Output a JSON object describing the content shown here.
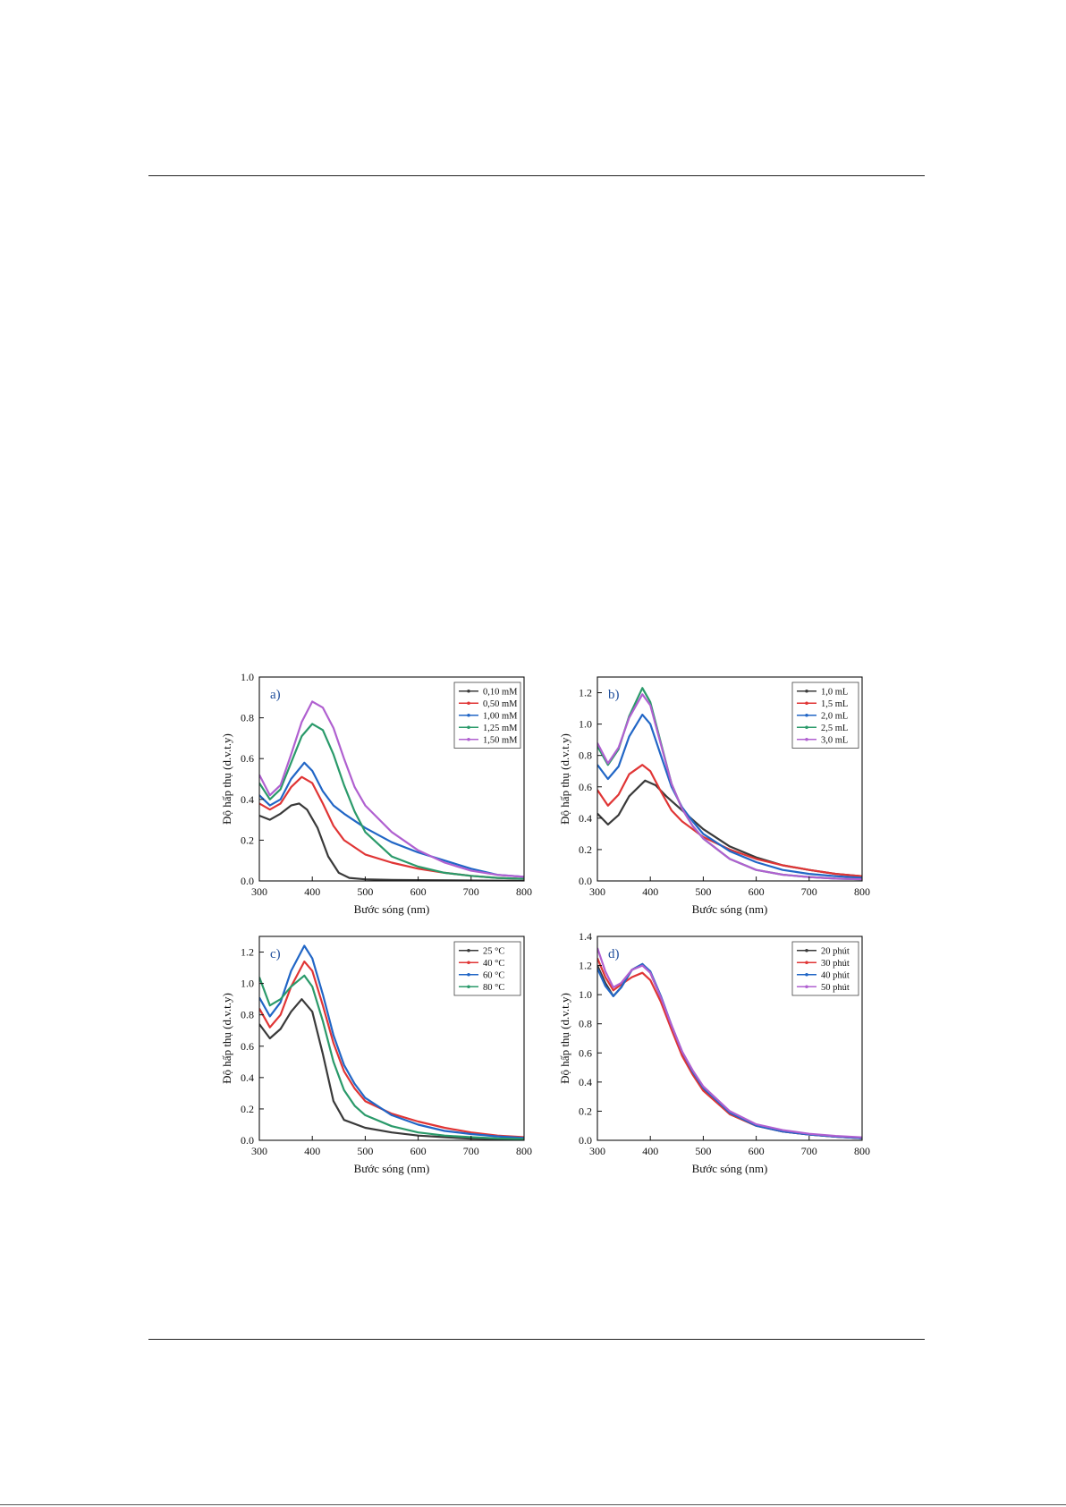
{
  "chart_data": [
    {
      "id": "a",
      "type": "line",
      "panel_label": "a)",
      "xlabel": "Bước sóng (nm)",
      "ylabel": "Độ hấp thụ (d.v.t.y)",
      "xlim": [
        300,
        800
      ],
      "ylim": [
        0,
        1.0
      ],
      "xticks": [
        300,
        400,
        500,
        600,
        700,
        800
      ],
      "yticks": [
        0.0,
        0.2,
        0.4,
        0.6,
        0.8,
        1.0
      ],
      "ytick_labels": [
        "0.0",
        "0.2",
        "0.4",
        "0.6",
        "0.8",
        "1.0"
      ],
      "legend_position": "top-right",
      "grid": false,
      "series": [
        {
          "name": "0,10 mM",
          "color": "#3a3a3a",
          "x": [
            300,
            320,
            340,
            360,
            375,
            390,
            410,
            430,
            450,
            470,
            500,
            550,
            600,
            700,
            800
          ],
          "y": [
            0.32,
            0.3,
            0.33,
            0.37,
            0.38,
            0.35,
            0.26,
            0.12,
            0.04,
            0.015,
            0.008,
            0.005,
            0.004,
            0.002,
            0.0
          ]
        },
        {
          "name": "0,50 mM",
          "color": "#e03535",
          "x": [
            300,
            320,
            340,
            360,
            380,
            400,
            420,
            440,
            460,
            500,
            550,
            600,
            650,
            700,
            750,
            800
          ],
          "y": [
            0.38,
            0.35,
            0.38,
            0.46,
            0.51,
            0.48,
            0.38,
            0.27,
            0.2,
            0.13,
            0.09,
            0.06,
            0.04,
            0.025,
            0.015,
            0.01
          ]
        },
        {
          "name": "1,00 mM",
          "color": "#2166c6",
          "x": [
            300,
            320,
            340,
            360,
            385,
            400,
            420,
            440,
            460,
            500,
            550,
            600,
            650,
            700,
            750,
            800
          ],
          "y": [
            0.42,
            0.37,
            0.4,
            0.5,
            0.58,
            0.54,
            0.44,
            0.37,
            0.33,
            0.26,
            0.19,
            0.14,
            0.1,
            0.06,
            0.03,
            0.02
          ]
        },
        {
          "name": "1,25 mM",
          "color": "#2a9a6a",
          "x": [
            300,
            320,
            340,
            360,
            380,
            400,
            420,
            440,
            460,
            480,
            500,
            550,
            600,
            650,
            700,
            750,
            800
          ],
          "y": [
            0.48,
            0.4,
            0.45,
            0.58,
            0.71,
            0.77,
            0.74,
            0.62,
            0.47,
            0.34,
            0.24,
            0.12,
            0.07,
            0.04,
            0.025,
            0.015,
            0.01
          ]
        },
        {
          "name": "1,50 mM",
          "color": "#b060d0",
          "x": [
            300,
            320,
            340,
            360,
            380,
            400,
            420,
            440,
            460,
            480,
            500,
            550,
            600,
            650,
            700,
            750,
            800
          ],
          "y": [
            0.52,
            0.42,
            0.47,
            0.62,
            0.78,
            0.88,
            0.85,
            0.75,
            0.6,
            0.46,
            0.37,
            0.24,
            0.15,
            0.09,
            0.05,
            0.03,
            0.02
          ]
        }
      ]
    },
    {
      "id": "b",
      "type": "line",
      "panel_label": "b)",
      "xlabel": "Bước sóng (nm)",
      "ylabel": "Độ hấp thụ (d.v.t.y)",
      "xlim": [
        300,
        800
      ],
      "ylim": [
        0,
        1.3
      ],
      "xticks": [
        300,
        400,
        500,
        600,
        700,
        800
      ],
      "yticks": [
        0.0,
        0.2,
        0.4,
        0.6,
        0.8,
        1.0,
        1.2
      ],
      "ytick_labels": [
        "0.0",
        "0.2",
        "0.4",
        "0.6",
        "0.8",
        "1.0",
        "1.2"
      ],
      "legend_position": "top-right",
      "grid": false,
      "series": [
        {
          "name": "1,0 mL",
          "color": "#3a3a3a",
          "x": [
            300,
            320,
            340,
            360,
            390,
            410,
            430,
            450,
            470,
            500,
            550,
            600,
            650,
            700,
            750,
            800
          ],
          "y": [
            0.43,
            0.36,
            0.42,
            0.54,
            0.64,
            0.61,
            0.54,
            0.48,
            0.42,
            0.33,
            0.22,
            0.15,
            0.1,
            0.07,
            0.045,
            0.03
          ]
        },
        {
          "name": "1,5 mL",
          "color": "#e03535",
          "x": [
            300,
            320,
            340,
            360,
            385,
            400,
            420,
            440,
            460,
            480,
            500,
            550,
            600,
            650,
            700,
            750,
            800
          ],
          "y": [
            0.58,
            0.48,
            0.55,
            0.68,
            0.74,
            0.7,
            0.57,
            0.45,
            0.38,
            0.33,
            0.28,
            0.2,
            0.14,
            0.1,
            0.07,
            0.045,
            0.03
          ]
        },
        {
          "name": "2,0 mL",
          "color": "#2166c6",
          "x": [
            300,
            320,
            340,
            360,
            385,
            400,
            420,
            440,
            460,
            480,
            500,
            550,
            600,
            650,
            700,
            750,
            800
          ],
          "y": [
            0.74,
            0.65,
            0.73,
            0.92,
            1.06,
            1.0,
            0.8,
            0.6,
            0.47,
            0.38,
            0.3,
            0.19,
            0.12,
            0.07,
            0.045,
            0.03,
            0.02
          ]
        },
        {
          "name": "2,5 mL",
          "color": "#2a9a6a",
          "x": [
            300,
            320,
            340,
            360,
            385,
            400,
            420,
            440,
            460,
            480,
            500,
            550,
            600,
            650,
            700,
            750,
            800
          ],
          "y": [
            0.86,
            0.74,
            0.84,
            1.05,
            1.23,
            1.14,
            0.88,
            0.62,
            0.46,
            0.35,
            0.27,
            0.14,
            0.07,
            0.04,
            0.025,
            0.015,
            0.01
          ]
        },
        {
          "name": "3,0 mL",
          "color": "#b060d0",
          "x": [
            300,
            320,
            340,
            360,
            385,
            400,
            420,
            440,
            460,
            480,
            500,
            550,
            600,
            650,
            700,
            750,
            800
          ],
          "y": [
            0.88,
            0.75,
            0.85,
            1.04,
            1.19,
            1.12,
            0.87,
            0.62,
            0.46,
            0.35,
            0.27,
            0.14,
            0.07,
            0.04,
            0.025,
            0.015,
            0.01
          ]
        }
      ]
    },
    {
      "id": "c",
      "type": "line",
      "panel_label": "c)",
      "xlabel": "Bước sóng (nm)",
      "ylabel": "Độ hấp thụ (d.v.t.y)",
      "xlim": [
        300,
        800
      ],
      "ylim": [
        0,
        1.3
      ],
      "xticks": [
        300,
        400,
        500,
        600,
        700,
        800
      ],
      "yticks": [
        0.0,
        0.2,
        0.4,
        0.6,
        0.8,
        1.0,
        1.2
      ],
      "ytick_labels": [
        "0.0",
        "0.2",
        "0.4",
        "0.6",
        "0.8",
        "1.0",
        "1.2"
      ],
      "legend_position": "top-right",
      "grid": false,
      "series": [
        {
          "name": "25 °C",
          "color": "#3a3a3a",
          "x": [
            300,
            320,
            340,
            360,
            380,
            400,
            420,
            440,
            460,
            500,
            550,
            600,
            650,
            700,
            800
          ],
          "y": [
            0.74,
            0.65,
            0.71,
            0.82,
            0.9,
            0.82,
            0.55,
            0.25,
            0.13,
            0.08,
            0.05,
            0.03,
            0.02,
            0.01,
            0.005
          ]
        },
        {
          "name": "40 °C",
          "color": "#e03535",
          "x": [
            300,
            320,
            340,
            360,
            385,
            400,
            420,
            440,
            460,
            480,
            500,
            550,
            600,
            650,
            700,
            750,
            800
          ],
          "y": [
            0.84,
            0.72,
            0.8,
            0.98,
            1.14,
            1.08,
            0.86,
            0.62,
            0.44,
            0.33,
            0.25,
            0.17,
            0.12,
            0.08,
            0.05,
            0.03,
            0.02
          ]
        },
        {
          "name": "60 °C",
          "color": "#2166c6",
          "x": [
            300,
            320,
            340,
            360,
            385,
            400,
            420,
            440,
            460,
            480,
            500,
            550,
            600,
            650,
            700,
            750,
            800
          ],
          "y": [
            0.91,
            0.79,
            0.88,
            1.08,
            1.24,
            1.16,
            0.93,
            0.67,
            0.48,
            0.36,
            0.27,
            0.16,
            0.1,
            0.06,
            0.04,
            0.025,
            0.015
          ]
        },
        {
          "name": "80 °C",
          "color": "#2a9a6a",
          "x": [
            300,
            320,
            340,
            360,
            385,
            400,
            420,
            440,
            460,
            480,
            500,
            550,
            600,
            650,
            700,
            750,
            800
          ],
          "y": [
            1.04,
            0.86,
            0.9,
            0.98,
            1.05,
            0.98,
            0.76,
            0.5,
            0.32,
            0.22,
            0.16,
            0.09,
            0.05,
            0.03,
            0.02,
            0.012,
            0.008
          ]
        }
      ]
    },
    {
      "id": "d",
      "type": "line",
      "panel_label": "d)",
      "xlabel": "Bước sóng (nm)",
      "ylabel": "Độ hấp thụ (d.v.t.y)",
      "xlim": [
        300,
        800
      ],
      "ylim": [
        0,
        1.4
      ],
      "xticks": [
        300,
        400,
        500,
        600,
        700,
        800
      ],
      "yticks": [
        0.0,
        0.2,
        0.4,
        0.6,
        0.8,
        1.0,
        1.2,
        1.4
      ],
      "ytick_labels": [
        "0.0",
        "0.2",
        "0.4",
        "0.6",
        "0.8",
        "1.0",
        "1.2",
        "1.4"
      ],
      "legend_position": "top-right",
      "grid": false,
      "series": [
        {
          "name": "20 phút",
          "color": "#3a3a3a",
          "x": [
            300,
            315,
            330,
            345,
            365,
            385,
            400,
            420,
            440,
            460,
            480,
            500,
            550,
            600,
            650,
            700,
            750,
            800
          ],
          "y": [
            1.2,
            1.08,
            0.99,
            1.05,
            1.17,
            1.21,
            1.15,
            0.98,
            0.78,
            0.6,
            0.46,
            0.35,
            0.18,
            0.1,
            0.06,
            0.04,
            0.025,
            0.015
          ]
        },
        {
          "name": "30 phút",
          "color": "#e03535",
          "x": [
            300,
            315,
            330,
            345,
            365,
            385,
            400,
            420,
            440,
            460,
            480,
            500,
            550,
            600,
            650,
            700,
            750,
            800
          ],
          "y": [
            1.25,
            1.12,
            1.03,
            1.07,
            1.12,
            1.15,
            1.1,
            0.95,
            0.76,
            0.58,
            0.45,
            0.34,
            0.18,
            0.1,
            0.06,
            0.04,
            0.025,
            0.015
          ]
        },
        {
          "name": "40 phút",
          "color": "#2166c6",
          "x": [
            300,
            315,
            330,
            345,
            365,
            385,
            400,
            420,
            440,
            460,
            480,
            500,
            550,
            600,
            650,
            700,
            750,
            800
          ],
          "y": [
            1.18,
            1.06,
            0.99,
            1.05,
            1.17,
            1.21,
            1.16,
            0.99,
            0.79,
            0.61,
            0.47,
            0.36,
            0.19,
            0.1,
            0.06,
            0.04,
            0.025,
            0.015
          ]
        },
        {
          "name": "50 phút",
          "color": "#b060d0",
          "x": [
            300,
            315,
            330,
            345,
            365,
            385,
            400,
            420,
            440,
            460,
            480,
            500,
            550,
            600,
            650,
            700,
            750,
            800
          ],
          "y": [
            1.32,
            1.16,
            1.05,
            1.08,
            1.17,
            1.2,
            1.15,
            0.98,
            0.79,
            0.61,
            0.48,
            0.37,
            0.2,
            0.11,
            0.07,
            0.045,
            0.03,
            0.02
          ]
        }
      ]
    }
  ]
}
